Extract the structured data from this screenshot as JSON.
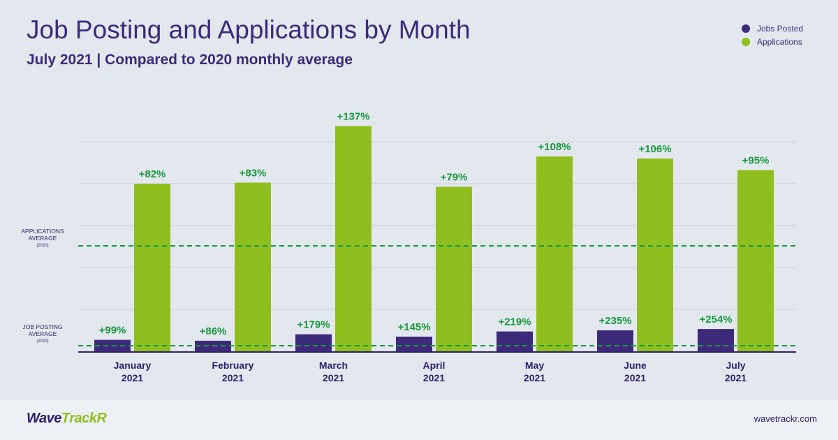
{
  "title": "Job Posting and Applications by Month",
  "subtitle": "July 2021 | Compared to 2020 monthly average",
  "legend": [
    {
      "label": "Jobs Posted",
      "color": "#3d2a7a"
    },
    {
      "label": "Applications",
      "color": "#8fbe1f"
    }
  ],
  "colors": {
    "jobs": "#3d2a7a",
    "applications": "#8fbe1f",
    "labels": "#17983e",
    "avg_line": "#17983e",
    "axis": "#2e1f6b",
    "grid": "#c9cfd7"
  },
  "chart_data": {
    "type": "bar",
    "categories": [
      "January 2021",
      "February 2021",
      "March 2021",
      "April 2021",
      "May 2021",
      "June 2021",
      "July 2021"
    ],
    "category_lines": [
      [
        "January",
        "2021"
      ],
      [
        "February",
        "2021"
      ],
      [
        "March",
        "2021"
      ],
      [
        "April",
        "2021"
      ],
      [
        "May",
        "2021"
      ],
      [
        "June",
        "2021"
      ],
      [
        "July",
        "2021"
      ]
    ],
    "series": [
      {
        "name": "Jobs Posted",
        "labels": [
          "+99%",
          "+86%",
          "+179%",
          "+145%",
          "+219%",
          "+235%",
          "+254%"
        ],
        "values": [
          99,
          86,
          179,
          145,
          219,
          235,
          254
        ]
      },
      {
        "name": "Applications",
        "labels": [
          "+82%",
          "+83%",
          "+137%",
          "+79%",
          "+108%",
          "+106%",
          "+95%"
        ],
        "values": [
          82,
          83,
          137,
          79,
          108,
          106,
          95
        ]
      }
    ],
    "reference_lines": [
      {
        "series": "Applications",
        "lines": [
          "APPLICATIONS",
          "AVERAGE",
          "(2020)"
        ]
      },
      {
        "series": "Jobs Posted",
        "lines": [
          "JOB POSTING",
          "AVERAGE",
          "(2020)"
        ]
      }
    ],
    "grid": true
  },
  "footer": {
    "logo_main": "Wave",
    "logo_accent": "TrackR",
    "url": "wavetrackr.com"
  }
}
